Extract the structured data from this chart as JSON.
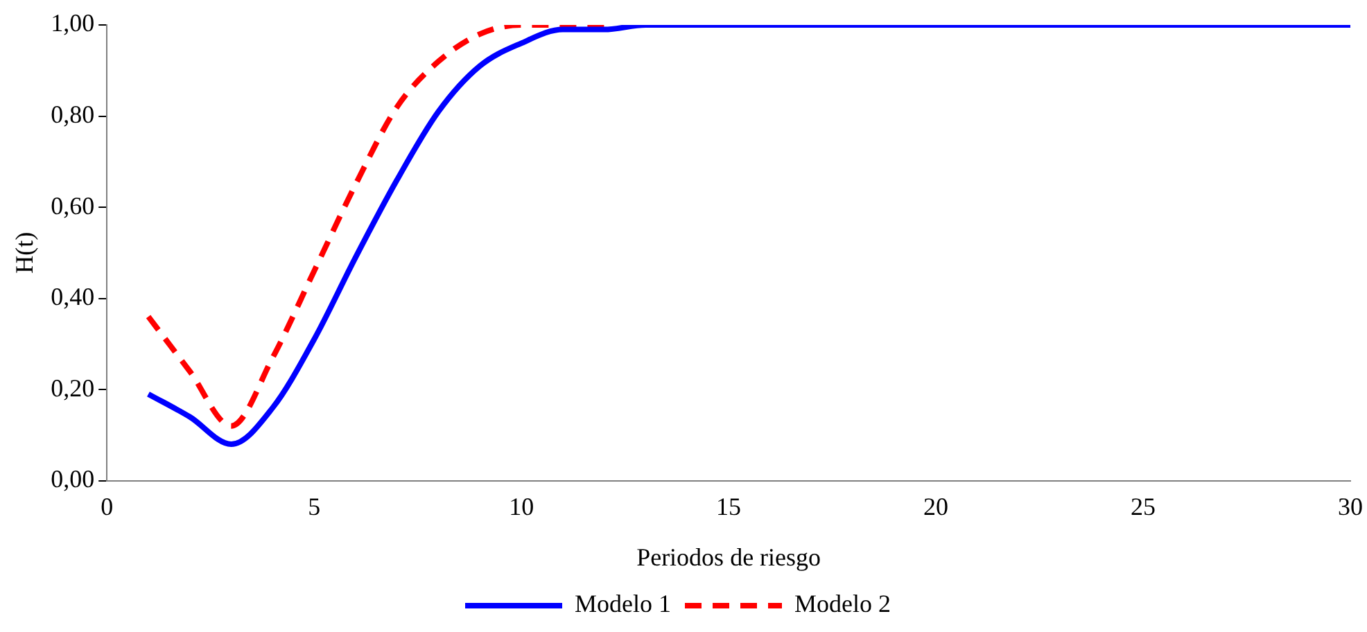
{
  "chart_data": {
    "type": "line",
    "xlabel": "Periodos de riesgo",
    "ylabel": "H(t)",
    "x": [
      1,
      2,
      3,
      4,
      5,
      6,
      7,
      8,
      9,
      10,
      11,
      12,
      13,
      14,
      15,
      16,
      17,
      18,
      19,
      20,
      21,
      22,
      23,
      24,
      25,
      26,
      27,
      28,
      29,
      30
    ],
    "series": [
      {
        "name": "Modelo 1",
        "color": "#0000ff",
        "line_style": "solid",
        "values": [
          0.19,
          0.14,
          0.08,
          0.16,
          0.31,
          0.49,
          0.66,
          0.81,
          0.91,
          0.96,
          0.99,
          0.99,
          1,
          1,
          1,
          1,
          1,
          1,
          1,
          1,
          1,
          1,
          1,
          1,
          1,
          1,
          1,
          1,
          1,
          1
        ]
      },
      {
        "name": "Modelo 2",
        "color": "#ff0000",
        "line_style": "dashed",
        "values": [
          0.36,
          0.24,
          0.12,
          0.27,
          0.46,
          0.65,
          0.82,
          0.92,
          0.98,
          1,
          1,
          1,
          null,
          null,
          null,
          null,
          null,
          null,
          null,
          null,
          null,
          null,
          null,
          null,
          null,
          null,
          null,
          null,
          null,
          null
        ]
      }
    ],
    "xlim": [
      0,
      30
    ],
    "xticks": [
      0,
      5,
      10,
      15,
      20,
      25,
      30
    ],
    "ylim": [
      0,
      1
    ],
    "yticks": [
      {
        "value": 0,
        "label": "0,00"
      },
      {
        "value": 0.2,
        "label": "0,20"
      },
      {
        "value": 0.4,
        "label": "0,40"
      },
      {
        "value": 0.6,
        "label": "0,60"
      },
      {
        "value": 0.8,
        "label": "0,80"
      },
      {
        "value": 1,
        "label": "1,00"
      }
    ],
    "grid": false,
    "legend": "bottom",
    "marker": "none"
  }
}
